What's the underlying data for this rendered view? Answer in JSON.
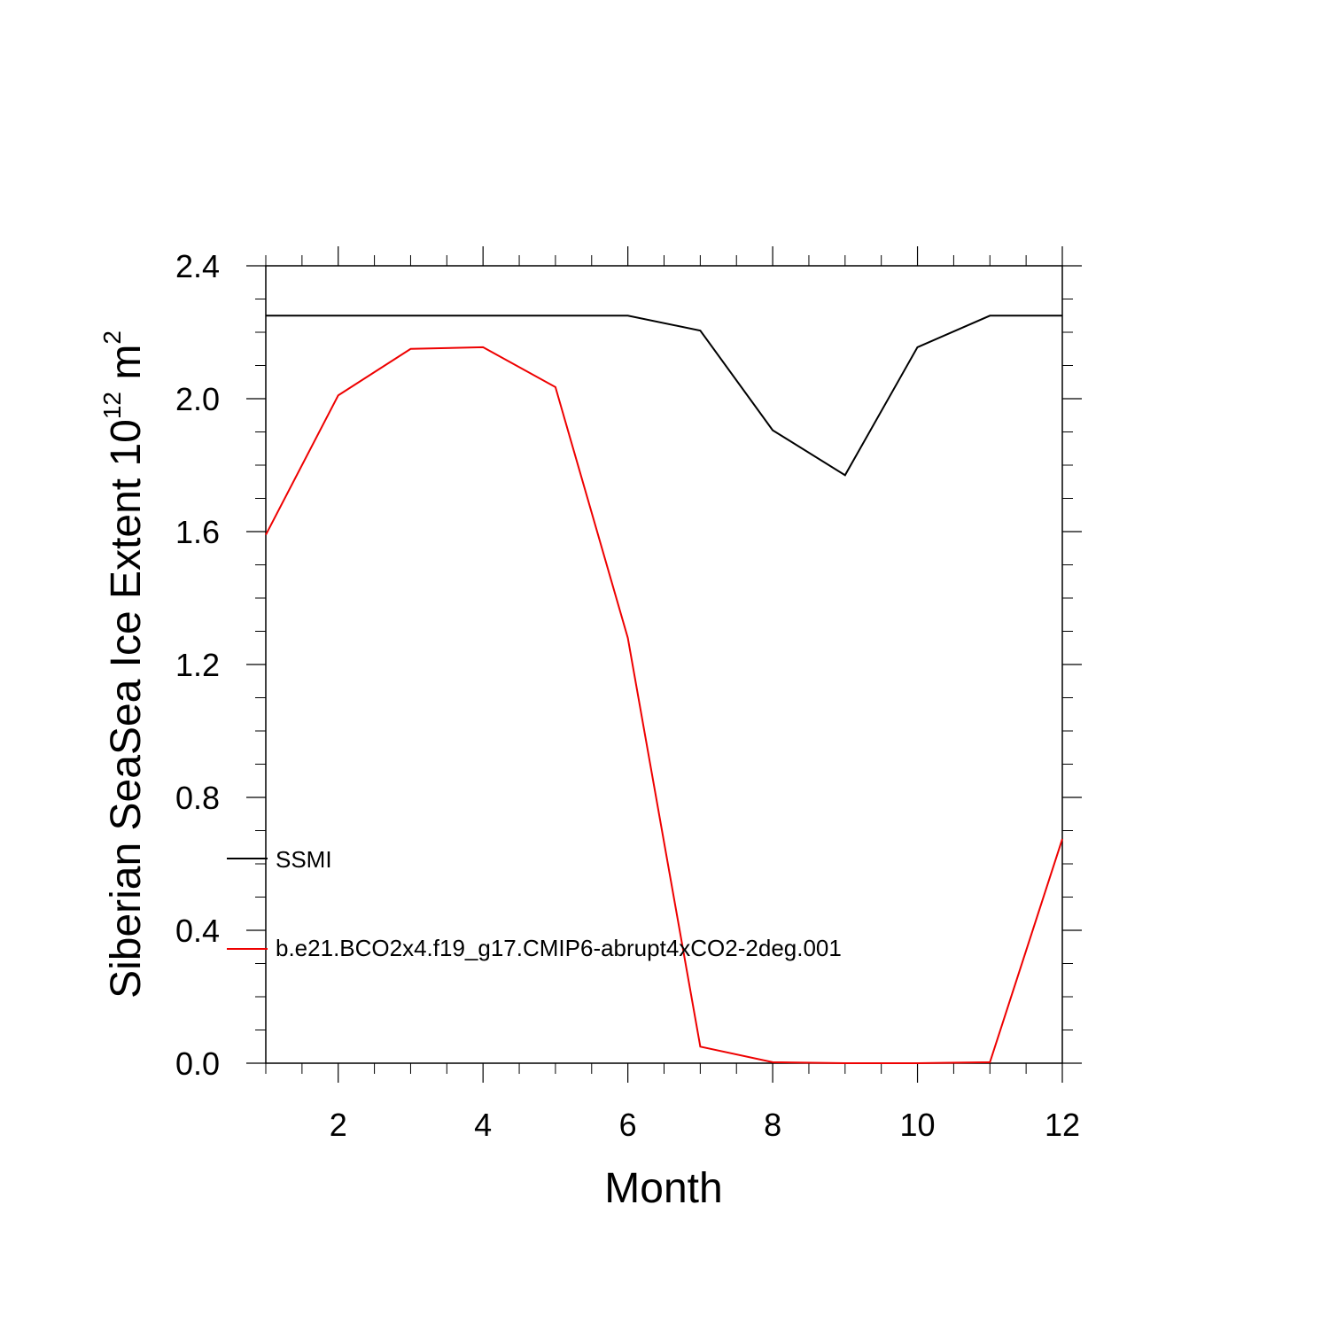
{
  "chart_data": {
    "type": "line",
    "xlabel": "Month",
    "ylabel": "Siberian SeaSea Ice Extent 10",
    "ylabel_exponent": "12",
    "ylabel_unit": "m",
    "ylabel_unit_exponent": "2",
    "xlim": [
      1,
      12
    ],
    "ylim": [
      0,
      2.4
    ],
    "x_ticks": [
      2,
      4,
      6,
      8,
      10,
      12
    ],
    "x_tick_labels": [
      "2",
      "4",
      "6",
      "8",
      "10",
      "12"
    ],
    "y_ticks": [
      0,
      0.4,
      0.8,
      1.2,
      1.6,
      2.0,
      2.4
    ],
    "y_tick_labels": [
      "0.0",
      "0.4",
      "0.8",
      "1.2",
      "1.6",
      "2.0",
      "2.4"
    ],
    "legend_position": "bottom-left",
    "x": [
      1,
      2,
      3,
      4,
      5,
      6,
      7,
      8,
      9,
      10,
      11,
      12
    ],
    "series": [
      {
        "name": "SSMI",
        "color": "#000000",
        "values": [
          2.25,
          2.25,
          2.25,
          2.25,
          2.25,
          2.25,
          2.205,
          1.905,
          1.77,
          2.155,
          2.25,
          2.25
        ]
      },
      {
        "name": "b.e21.BCO2x4.f19_g17.CMIP6-abrupt4xCO2-2deg.001",
        "color": "#ee0000",
        "values": [
          1.59,
          2.01,
          2.15,
          2.155,
          2.035,
          1.28,
          0.05,
          0.003,
          0.0,
          0.0,
          0.003,
          0.675
        ]
      }
    ]
  }
}
